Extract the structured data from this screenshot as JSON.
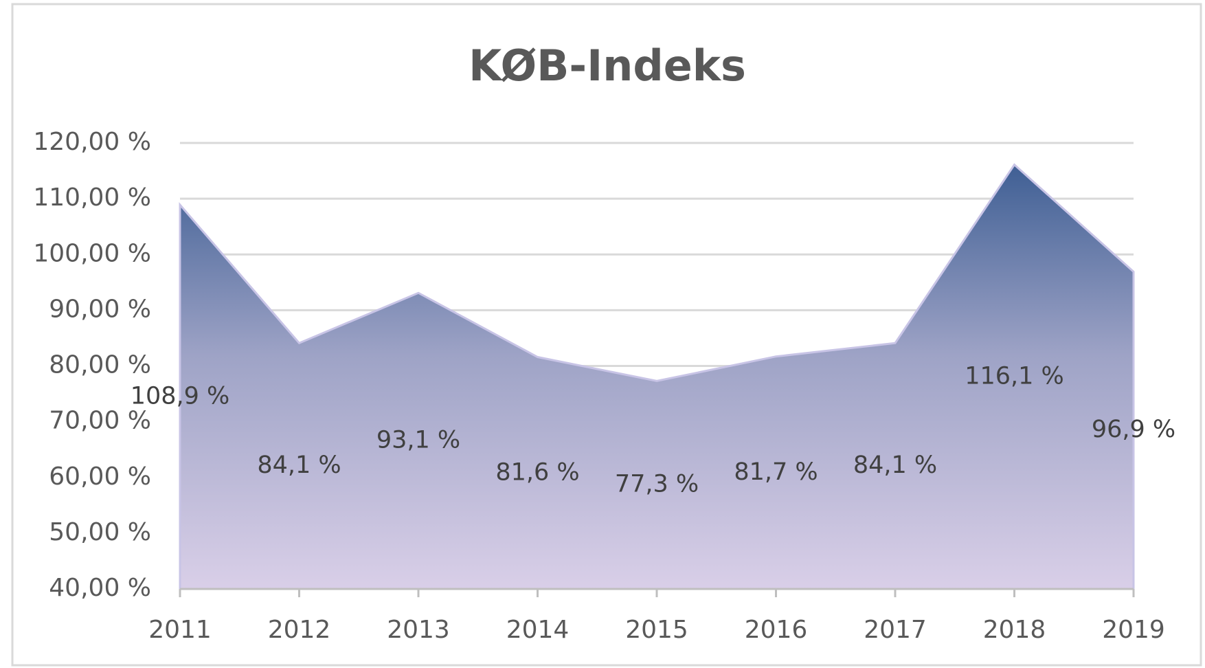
{
  "chart_data": {
    "type": "area",
    "title": "KØB-Indeks",
    "categories": [
      "2011",
      "2012",
      "2013",
      "2014",
      "2015",
      "2016",
      "2017",
      "2018",
      "2019"
    ],
    "values": [
      108.9,
      84.1,
      93.1,
      81.6,
      77.3,
      81.7,
      84.1,
      116.1,
      96.9
    ],
    "value_labels": [
      "108,9 %",
      "84,1 %",
      "93,1 %",
      "81,6 %",
      "77,3 %",
      "81,7 %",
      "84,1 %",
      "116,1 %",
      "96,9 %"
    ],
    "color": "#4a6a9c",
    "ylim": [
      40,
      120
    ],
    "yticks": [
      {
        "value": 40,
        "label": "40,00 %"
      },
      {
        "value": 50,
        "label": "50,00 %"
      },
      {
        "value": 60,
        "label": "60,00 %"
      },
      {
        "value": 70,
        "label": "70,00 %"
      },
      {
        "value": 80,
        "label": "80,00 %"
      },
      {
        "value": 90,
        "label": "90,00 %"
      },
      {
        "value": 100,
        "label": "100,00 %"
      },
      {
        "value": 110,
        "label": "110,00 %"
      },
      {
        "value": 120,
        "label": "120,00 %"
      }
    ],
    "grid": true
  }
}
